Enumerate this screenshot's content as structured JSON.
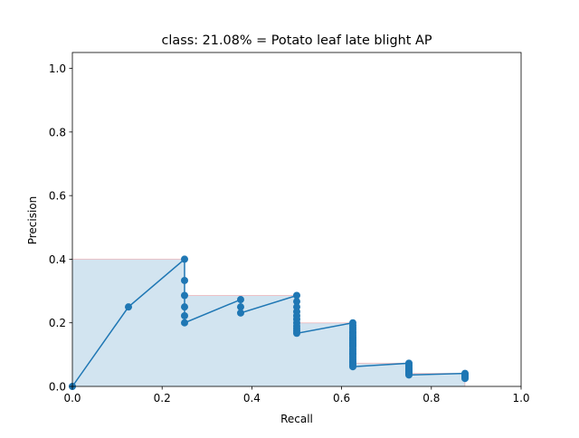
{
  "chart_data": {
    "type": "line",
    "title": "class: 21.08% = Potato leaf late blight AP",
    "xlabel": "Recall",
    "ylabel": "Precision",
    "xlim": [
      0.0,
      1.0
    ],
    "ylim": [
      0.0,
      1.05
    ],
    "xticks": [
      "0.0",
      "0.2",
      "0.4",
      "0.6",
      "0.8",
      "1.0"
    ],
    "yticks": [
      "0.0",
      "0.2",
      "0.4",
      "0.6",
      "0.8",
      "1.0"
    ],
    "grid": false,
    "series": [
      {
        "kind": "precision-recall curve",
        "color": "#1f77b4",
        "points": [
          [
            0.0,
            0.0
          ],
          [
            0.125,
            0.25
          ],
          [
            0.25,
            0.4
          ],
          [
            0.25,
            0.333
          ],
          [
            0.25,
            0.286
          ],
          [
            0.25,
            0.25
          ],
          [
            0.25,
            0.222
          ],
          [
            0.25,
            0.2
          ],
          [
            0.375,
            0.273
          ],
          [
            0.375,
            0.25
          ],
          [
            0.375,
            0.231
          ],
          [
            0.5,
            0.286
          ],
          [
            0.5,
            0.267
          ],
          [
            0.5,
            0.25
          ],
          [
            0.5,
            0.235
          ],
          [
            0.5,
            0.222
          ],
          [
            0.5,
            0.211
          ],
          [
            0.5,
            0.2
          ],
          [
            0.5,
            0.19
          ],
          [
            0.5,
            0.182
          ],
          [
            0.5,
            0.174
          ],
          [
            0.5,
            0.167
          ],
          [
            0.625,
            0.2
          ],
          [
            0.625,
            0.192
          ],
          [
            0.625,
            0.185
          ],
          [
            0.625,
            0.179
          ],
          [
            0.625,
            0.172
          ],
          [
            0.625,
            0.167
          ],
          [
            0.625,
            0.161
          ],
          [
            0.625,
            0.156
          ],
          [
            0.625,
            0.152
          ],
          [
            0.625,
            0.147
          ],
          [
            0.625,
            0.143
          ],
          [
            0.625,
            0.139
          ],
          [
            0.625,
            0.135
          ],
          [
            0.625,
            0.132
          ],
          [
            0.625,
            0.128
          ],
          [
            0.625,
            0.125
          ],
          [
            0.625,
            0.119
          ],
          [
            0.625,
            0.114
          ],
          [
            0.625,
            0.109
          ],
          [
            0.625,
            0.104
          ],
          [
            0.625,
            0.1
          ],
          [
            0.625,
            0.094
          ],
          [
            0.625,
            0.089
          ],
          [
            0.625,
            0.083
          ],
          [
            0.625,
            0.078
          ],
          [
            0.625,
            0.074
          ],
          [
            0.625,
            0.069
          ],
          [
            0.625,
            0.065
          ],
          [
            0.625,
            0.062
          ],
          [
            0.75,
            0.073
          ],
          [
            0.75,
            0.068
          ],
          [
            0.75,
            0.063
          ],
          [
            0.75,
            0.059
          ],
          [
            0.75,
            0.055
          ],
          [
            0.75,
            0.052
          ],
          [
            0.75,
            0.049
          ],
          [
            0.75,
            0.046
          ],
          [
            0.75,
            0.043
          ],
          [
            0.75,
            0.041
          ],
          [
            0.75,
            0.038
          ],
          [
            0.75,
            0.036
          ],
          [
            0.875,
            0.041
          ],
          [
            0.875,
            0.039
          ],
          [
            0.875,
            0.037
          ],
          [
            0.875,
            0.035
          ],
          [
            0.875,
            0.033
          ],
          [
            0.875,
            0.031
          ],
          [
            0.875,
            0.029
          ],
          [
            0.875,
            0.027
          ],
          [
            0.875,
            0.025
          ]
        ]
      },
      {
        "kind": "interpolated precision (area)",
        "color": "#1f77b4",
        "edge_color": "#ff0000",
        "points": [
          [
            0.0,
            0.4
          ],
          [
            0.25,
            0.4
          ],
          [
            0.25,
            0.286
          ],
          [
            0.5,
            0.286
          ],
          [
            0.5,
            0.2
          ],
          [
            0.625,
            0.2
          ],
          [
            0.625,
            0.073
          ],
          [
            0.75,
            0.073
          ],
          [
            0.75,
            0.041
          ],
          [
            0.875,
            0.041
          ],
          [
            0.875,
            0.0
          ]
        ]
      }
    ]
  }
}
